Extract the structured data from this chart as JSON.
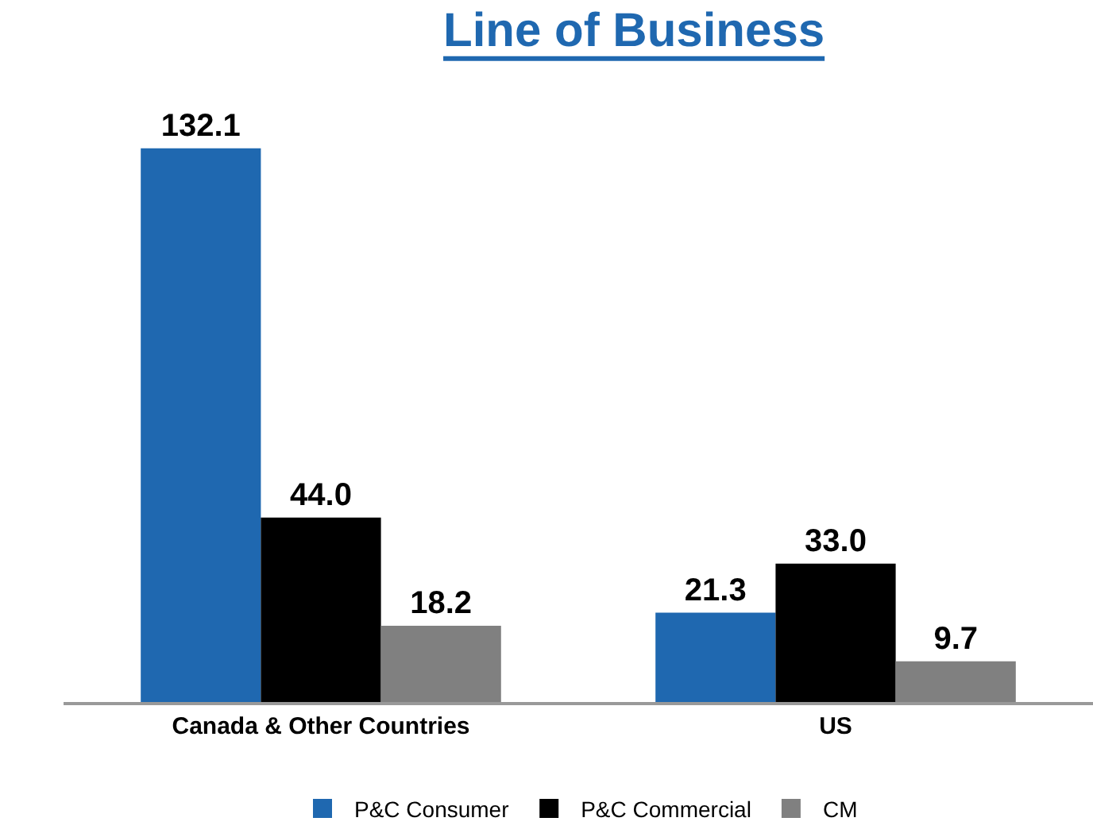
{
  "chart_data": {
    "type": "bar",
    "title": "Line of Business",
    "categories": [
      "Canada & Other Countries",
      "US"
    ],
    "series": [
      {
        "name": "P&C Consumer",
        "color": "#1f68b0",
        "values": [
          132.1,
          21.3
        ],
        "value_labels": [
          "132.1",
          "21.3"
        ]
      },
      {
        "name": "P&C Commercial",
        "color": "#000000",
        "values": [
          44.0,
          33.0
        ],
        "value_labels": [
          "44.0",
          "33.0"
        ]
      },
      {
        "name": "CM",
        "color": "#808080",
        "values": [
          18.2,
          9.7
        ],
        "value_labels": [
          "18.2",
          "9.7"
        ]
      }
    ],
    "legend": "bottom"
  }
}
